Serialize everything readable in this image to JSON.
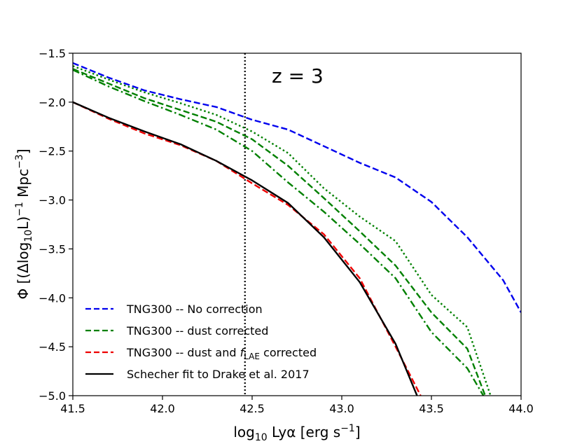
{
  "chart_data": {
    "type": "line",
    "title": "",
    "annotation": "z = 3",
    "xlabel": "log10 Lyα [erg s−1]",
    "ylabel": "Φ [(Δlog10L)−1 Mpc−3]",
    "xlim": [
      41.5,
      44.0
    ],
    "ylim": [
      -5.0,
      -1.5
    ],
    "xticks": [
      "41.5",
      "42.0",
      "42.5",
      "43.0",
      "43.5",
      "44.0"
    ],
    "yticks": [
      "−1.5",
      "−2.0",
      "−2.5",
      "−3.0",
      "−3.5",
      "−4.0",
      "−4.5",
      "−5.0"
    ],
    "vline_x": 42.46,
    "series": [
      {
        "name": "TNG300 -- No correction",
        "color": "#0000ee",
        "style": "dashed",
        "x": [
          41.5,
          41.7,
          41.9,
          42.1,
          42.3,
          42.5,
          42.7,
          42.9,
          43.1,
          43.3,
          43.5,
          43.7,
          43.9,
          44.0
        ],
        "y": [
          -1.6,
          -1.75,
          -1.88,
          -1.97,
          -2.05,
          -2.18,
          -2.28,
          -2.45,
          -2.62,
          -2.77,
          -3.02,
          -3.38,
          -3.82,
          -4.15
        ]
      },
      {
        "name": "TNG300 -- dust corrected",
        "color": "#008000",
        "style": "dashed",
        "x": [
          41.5,
          41.7,
          41.9,
          42.1,
          42.3,
          42.5,
          42.7,
          42.9,
          43.1,
          43.3,
          43.5,
          43.7,
          43.8
        ],
        "y": [
          -1.66,
          -1.81,
          -1.96,
          -2.08,
          -2.2,
          -2.38,
          -2.65,
          -2.98,
          -3.32,
          -3.67,
          -4.15,
          -4.52,
          -5.0
        ]
      },
      {
        "name": "TNG300 dust corrected (dotted)",
        "color": "#008000",
        "style": "dotted",
        "x": [
          41.5,
          41.7,
          41.9,
          42.1,
          42.3,
          42.5,
          42.7,
          42.9,
          43.1,
          43.3,
          43.5,
          43.7,
          43.83
        ],
        "y": [
          -1.63,
          -1.77,
          -1.9,
          -2.01,
          -2.13,
          -2.3,
          -2.52,
          -2.88,
          -3.17,
          -3.42,
          -3.97,
          -4.3,
          -5.0
        ]
      },
      {
        "name": "TNG300 dust corrected (dash-dot)",
        "color": "#008000",
        "style": "dashdot",
        "x": [
          41.5,
          41.7,
          41.9,
          42.1,
          42.3,
          42.5,
          42.7,
          42.9,
          43.1,
          43.3,
          43.5,
          43.7,
          43.79
        ],
        "y": [
          -1.67,
          -1.84,
          -1.99,
          -2.13,
          -2.28,
          -2.5,
          -2.82,
          -3.12,
          -3.45,
          -3.8,
          -4.35,
          -4.72,
          -5.0
        ]
      },
      {
        "name": "TNG300 -- dust and fLAE corrected",
        "color": "#ee0000",
        "style": "dashed",
        "x": [
          41.5,
          41.7,
          41.9,
          42.1,
          42.3,
          42.5,
          42.7,
          42.9,
          43.1,
          43.3,
          43.44
        ],
        "y": [
          -2.0,
          -2.17,
          -2.32,
          -2.44,
          -2.6,
          -2.83,
          -3.05,
          -3.35,
          -3.8,
          -4.5,
          -5.0
        ]
      },
      {
        "name": "Schecher fit to Drake et al. 2017",
        "color": "#000000",
        "style": "solid",
        "x": [
          41.5,
          41.7,
          41.9,
          42.1,
          42.3,
          42.5,
          42.7,
          42.9,
          43.1,
          43.3,
          43.42
        ],
        "y": [
          -2.0,
          -2.16,
          -2.3,
          -2.43,
          -2.6,
          -2.8,
          -3.03,
          -3.38,
          -3.84,
          -4.47,
          -5.0
        ]
      }
    ],
    "legend": {
      "location": "lower-left",
      "entries": [
        {
          "label": "TNG300 -- No correction",
          "color": "#0000ee",
          "style": "dashed"
        },
        {
          "label": "TNG300 -- dust corrected",
          "color": "#008000",
          "style": "dashed"
        },
        {
          "label_pre": "TNG300 -- dust and ",
          "label_f": "f",
          "label_sub": "LAE",
          "label_post": " corrected",
          "color": "#ee0000",
          "style": "dashed"
        },
        {
          "label": "Schecher fit to Drake et al. 2017",
          "color": "#000000",
          "style": "solid"
        }
      ]
    }
  }
}
